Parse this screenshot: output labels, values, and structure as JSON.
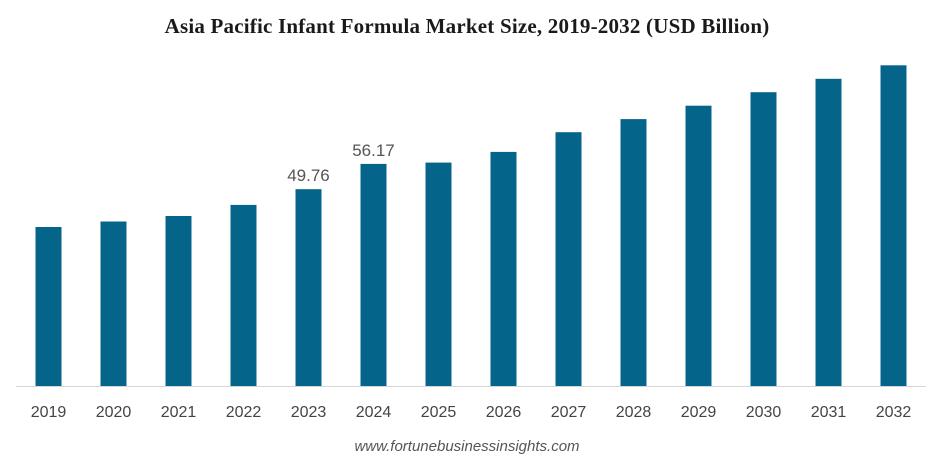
{
  "chart_data": {
    "type": "bar",
    "title": "Asia Pacific Infant Formula Market Size, 2019-2032 (USD Billion)",
    "xlabel": "",
    "ylabel": "",
    "categories": [
      "2019",
      "2020",
      "2021",
      "2022",
      "2023",
      "2024",
      "2025",
      "2026",
      "2027",
      "2028",
      "2029",
      "2030",
      "2031",
      "2032"
    ],
    "values": [
      40.2,
      41.6,
      43.0,
      45.8,
      49.76,
      56.17,
      56.5,
      59.2,
      64.2,
      67.5,
      70.9,
      74.3,
      77.7,
      81.1
    ],
    "data_labels": [
      {
        "category": "2023",
        "text": "49.76"
      },
      {
        "category": "2024",
        "text": "56.17"
      }
    ],
    "ylim": [
      0,
      87
    ],
    "bar_color": "#05648a",
    "grid": false,
    "legend": "none"
  },
  "footer": {
    "source": "www.fortunebusinessinsights.com"
  }
}
